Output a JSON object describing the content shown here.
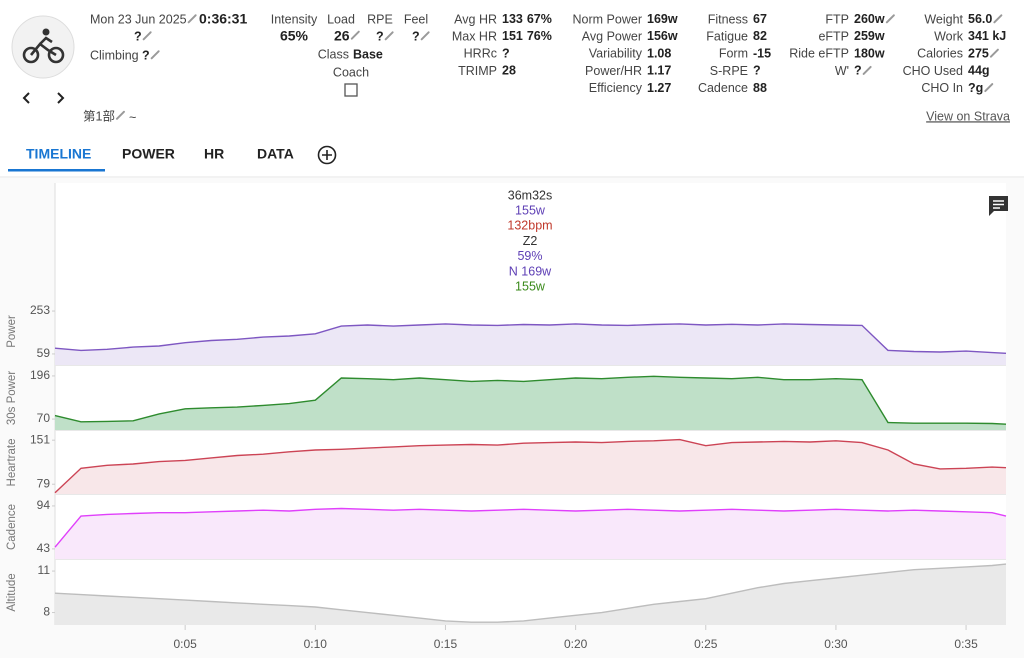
{
  "header": {
    "date": "Mon 23 Jun 2025",
    "duration": "0:36:31",
    "name": "?",
    "climbing_label": "Climbing",
    "climbing": "?",
    "part": "第1部",
    "part_suffix": "~",
    "strava": "View on Strava"
  },
  "summary": {
    "intensity_label": "Intensity",
    "intensity": "65%",
    "load_label": "Load",
    "load": "26",
    "rpe_label": "RPE",
    "rpe": "?",
    "feel_label": "Feel",
    "feel": "?",
    "class_label": "Class",
    "class": "Base",
    "coach_label": "Coach"
  },
  "stats": [
    [
      {
        "label": "Avg HR",
        "value": "133",
        "extra": "67%"
      },
      {
        "label": "Max HR",
        "value": "151",
        "extra": "76%"
      },
      {
        "label": "HRRc",
        "value": "?"
      },
      {
        "label": "TRIMP",
        "value": "28"
      }
    ],
    [
      {
        "label": "Norm Power",
        "value": "169w"
      },
      {
        "label": "Avg Power",
        "value": "156w"
      },
      {
        "label": "Variability",
        "value": "1.08"
      },
      {
        "label": "Power/HR",
        "value": "1.17"
      },
      {
        "label": "Efficiency",
        "value": "1.27"
      }
    ],
    [
      {
        "label": "Fitness",
        "value": "67"
      },
      {
        "label": "Fatigue",
        "value": "82"
      },
      {
        "label": "Form",
        "value": "-15"
      },
      {
        "label": "S-RPE",
        "value": "?"
      },
      {
        "label": "Cadence",
        "value": "88"
      }
    ],
    [
      {
        "label": "FTP",
        "value": "260w"
      },
      {
        "label": "eFTP",
        "value": "259w"
      },
      {
        "label": "Ride eFTP",
        "value": "180w"
      },
      {
        "label": "W'",
        "value": "?"
      }
    ],
    [
      {
        "label": "Weight",
        "value": "56.0"
      },
      {
        "label": "Work",
        "value": "341 kJ"
      },
      {
        "label": "Calories",
        "value": "275"
      },
      {
        "label": "CHO Used",
        "value": "44g"
      },
      {
        "label": "CHO In",
        "value": "?g"
      }
    ]
  ],
  "tabs": [
    "TIMELINE",
    "POWER",
    "HR",
    "DATA"
  ],
  "tooltip": [
    "36m32s",
    "155w",
    "132bpm",
    "Z2",
    "59%",
    "N 169w",
    "155w"
  ],
  "chart_data": {
    "type": "area-panels",
    "x": [
      0,
      60,
      120,
      180,
      240,
      300,
      360,
      420,
      480,
      540,
      600,
      660,
      720,
      780,
      840,
      900,
      960,
      1020,
      1080,
      1140,
      1200,
      1260,
      1320,
      1380,
      1440,
      1500,
      1560,
      1620,
      1680,
      1740,
      1800,
      1860,
      1920,
      1980,
      2040,
      2100,
      2160,
      2192
    ],
    "xlim": [
      0,
      2192
    ],
    "xticks": [
      {
        "value": 300,
        "label": "0:05"
      },
      {
        "value": 600,
        "label": "0:10"
      },
      {
        "value": 900,
        "label": "0:15"
      },
      {
        "value": 1200,
        "label": "0:20"
      },
      {
        "value": 1500,
        "label": "0:25"
      },
      {
        "value": 1800,
        "label": "0:30"
      },
      {
        "value": 2100,
        "label": "0:35"
      }
    ],
    "panels": [
      {
        "name": "Power",
        "color": "#7e57c2",
        "fill": "#ece7f6",
        "ylim": [
          9,
          312
        ],
        "yticks": [
          59,
          253
        ],
        "values": [
          85,
          75,
          80,
          90,
          95,
          110,
          120,
          125,
          135,
          140,
          150,
          185,
          190,
          185,
          190,
          195,
          190,
          188,
          192,
          190,
          195,
          190,
          188,
          192,
          195,
          190,
          193,
          190,
          195,
          192,
          190,
          188,
          75,
          70,
          68,
          72,
          65,
          62
        ]
      },
      {
        "name": "30s Power",
        "color": "#2e8b2e",
        "fill": "#bfe0c8",
        "ylim": [
          38,
          225
        ],
        "yticks": [
          70,
          196
        ],
        "values": [
          80,
          62,
          63,
          65,
          85,
          100,
          103,
          105,
          110,
          115,
          125,
          190,
          188,
          185,
          190,
          185,
          180,
          183,
          180,
          185,
          190,
          188,
          192,
          195,
          192,
          190,
          188,
          192,
          185,
          185,
          188,
          185,
          60,
          58,
          58,
          58,
          57,
          55
        ]
      },
      {
        "name": "Heartrate",
        "color": "#cc4455",
        "fill": "#f8e7e9",
        "ylim": [
          63,
          166
        ],
        "yticks": [
          79,
          151
        ],
        "values": [
          65,
          105,
          110,
          112,
          116,
          118,
          122,
          126,
          128,
          132,
          135,
          136,
          138,
          140,
          142,
          143,
          144,
          143,
          146,
          147,
          148,
          147,
          149,
          150,
          152,
          142,
          147,
          148,
          149,
          148,
          150,
          147,
          135,
          112,
          104,
          105,
          107,
          106
        ]
      },
      {
        "name": "Cadence",
        "color": "#e040fb",
        "fill": "#f9e8fb",
        "ylim": [
          31,
          107
        ],
        "yticks": [
          43,
          94
        ],
        "values": [
          45,
          82,
          84,
          85,
          86,
          86,
          87,
          88,
          89,
          88,
          90,
          91,
          90,
          89,
          90,
          89,
          88,
          89,
          90,
          89,
          88,
          89,
          90,
          89,
          88,
          89,
          90,
          89,
          88,
          89,
          90,
          89,
          88,
          89,
          88,
          87,
          86,
          82
        ]
      },
      {
        "name": "Altitude",
        "color": "#bdbdbd",
        "fill": "#e9e9e9",
        "ylim": [
          7.1,
          11.8
        ],
        "yticks": [
          8,
          11
        ],
        "values": [
          9.4,
          9.3,
          9.2,
          9.1,
          9.0,
          8.9,
          8.8,
          8.7,
          8.6,
          8.5,
          8.4,
          8.2,
          8.0,
          7.8,
          7.6,
          7.4,
          7.3,
          7.3,
          7.4,
          7.6,
          7.8,
          8.0,
          8.3,
          8.6,
          8.8,
          9.0,
          9.4,
          9.8,
          10.1,
          10.3,
          10.5,
          10.7,
          10.9,
          11.1,
          11.2,
          11.3,
          11.4,
          11.5
        ]
      }
    ]
  }
}
